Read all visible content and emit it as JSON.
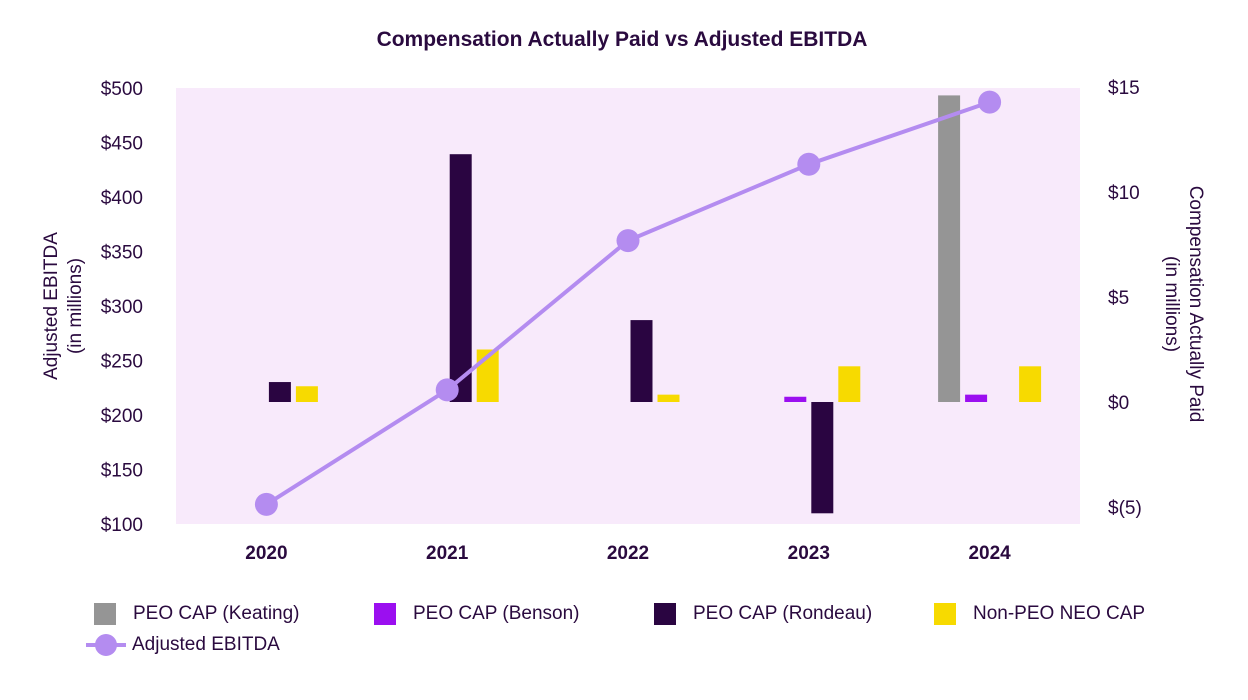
{
  "chart_data": {
    "type": "bar+line",
    "title": "Compensation Actually Paid vs Adjusted EBITDA",
    "categories": [
      "2020",
      "2021",
      "2022",
      "2023",
      "2024"
    ],
    "left_axis": {
      "label_line1": "Adjusted EBITDA",
      "label_line2": "(in millions)",
      "ylim": [
        100,
        500
      ],
      "ticks": [
        100,
        150,
        200,
        250,
        300,
        350,
        400,
        450,
        500
      ],
      "tick_labels": [
        "$100",
        "$150",
        "$200",
        "$250",
        "$300",
        "$350",
        "$400",
        "$450",
        "$500"
      ]
    },
    "right_axis": {
      "label_line1": "Compensation Actually Paid",
      "label_line2": "(in millions)",
      "ylim": [
        -6,
        15
      ],
      "ticks": [
        15,
        10,
        5,
        0,
        -5
      ],
      "tick_labels": [
        "$15",
        "$10",
        "$5",
        "$0",
        "$(5)"
      ]
    },
    "bar_series": [
      {
        "name": "PEO CAP (Keating)",
        "color": "#959595",
        "values": [
          null,
          null,
          null,
          null,
          14.6
        ]
      },
      {
        "name": "PEO CAP (Benson)",
        "color": "#9b0ff0",
        "values": [
          null,
          null,
          null,
          0.25,
          0.35
        ]
      },
      {
        "name": "PEO CAP (Rondeau)",
        "color": "#2a0541",
        "values": [
          0.95,
          11.8,
          3.9,
          -5.3,
          null
        ]
      },
      {
        "name": "Non-PEO NEO CAP",
        "color": "#f7da00",
        "values": [
          0.75,
          2.5,
          0.35,
          1.7,
          1.7
        ]
      }
    ],
    "line_series": {
      "name": "Adjusted EBITDA",
      "color": "#b48cf0",
      "values": [
        118,
        223,
        360,
        430,
        487
      ]
    },
    "plot_background": "#f8eafb"
  }
}
